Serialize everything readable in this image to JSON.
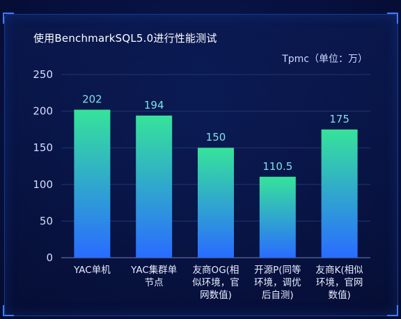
{
  "chart_data": {
    "type": "bar",
    "title": "使用BenchmarkSQL5.0进行性能测试",
    "ylabel": "Tpmc（单位：万）",
    "xlabel": "",
    "ylim": [
      0,
      250
    ],
    "yticks": [
      0,
      50,
      100,
      150,
      200,
      250
    ],
    "grid": true,
    "categories": [
      [
        "YAC单机"
      ],
      [
        "YAC集群单",
        "节点"
      ],
      [
        "友商OG(相",
        "似环境，官",
        "网数值)"
      ],
      [
        "开源P(同等",
        "环境，调优",
        "后自测)"
      ],
      [
        "友商K(相似",
        "环境，官网",
        "数值)"
      ]
    ],
    "values": [
      202,
      194,
      150,
      110.5,
      175
    ],
    "value_labels": [
      "202",
      "194",
      "150",
      "110.5",
      "175"
    ],
    "colors": {
      "bar_top": "#36e39a",
      "bar_bottom": "#2a6cff",
      "value_label": "#7fe0e6",
      "grid": "#23356f"
    }
  }
}
